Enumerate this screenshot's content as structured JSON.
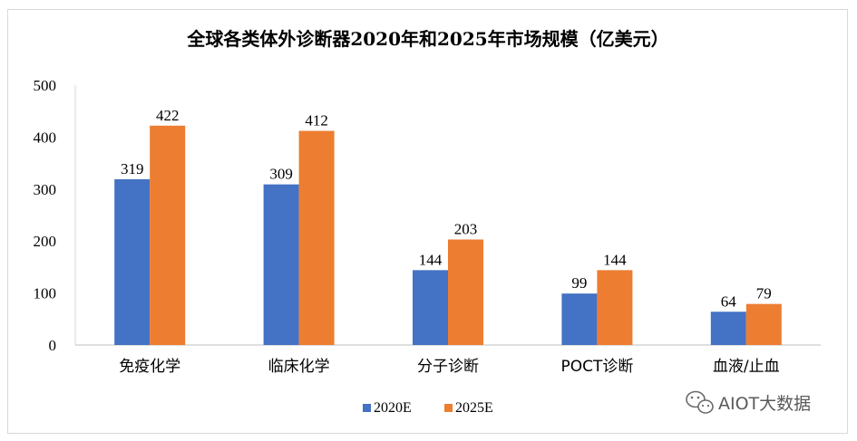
{
  "chart_data": {
    "type": "bar",
    "title": "全球各类体外诊断器2020年和2025年市场规模（亿美元）",
    "categories": [
      "免疫化学",
      "临床化学",
      "分子诊断",
      "POCT诊断",
      "血液/止血"
    ],
    "series": [
      {
        "name": "2020E",
        "values": [
          319,
          309,
          144,
          99,
          64
        ],
        "color": "#4472C4"
      },
      {
        "name": "2025E",
        "values": [
          422,
          412,
          203,
          144,
          79
        ],
        "color": "#ED7D31"
      }
    ],
    "ylim": [
      0,
      500
    ],
    "yticks": [
      0,
      100,
      200,
      300,
      400,
      500
    ],
    "grid": false,
    "legend": "bottom-center",
    "xlabel": "",
    "ylabel": ""
  },
  "watermark": {
    "text": "AIOT大数据",
    "icon": "wechat-icon"
  }
}
